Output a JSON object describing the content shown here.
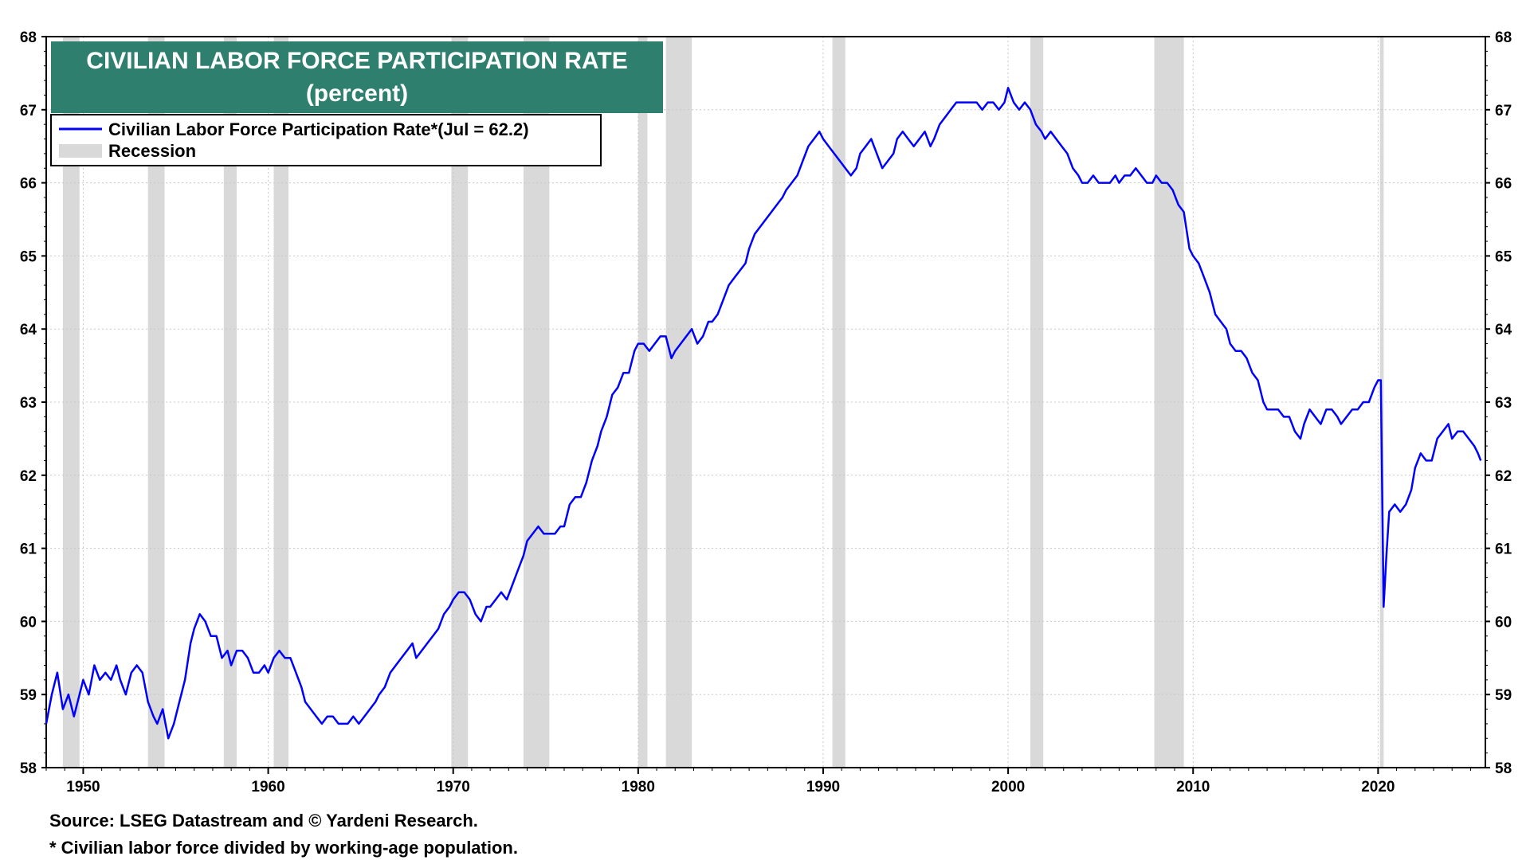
{
  "chart_data": {
    "type": "line",
    "title": "CIVILIAN LABOR FORCE PARTICIPATION RATE",
    "subtitle": "(percent)",
    "ylim": [
      58,
      68
    ],
    "xlim": [
      1948.0,
      2025.8
    ],
    "y_ticks": [
      58,
      59,
      60,
      61,
      62,
      63,
      64,
      65,
      66,
      67,
      68
    ],
    "x_ticks": [
      1950,
      1960,
      1970,
      1980,
      1990,
      2000,
      2010,
      2020
    ],
    "grid": true,
    "legend_position": "top-left",
    "series": [
      {
        "name": "Civilian Labor Force Participation Rate*(Jul = 62.2)",
        "color": "#0000ff",
        "points": [
          [
            1948.0,
            58.6
          ],
          [
            1948.3,
            59.0
          ],
          [
            1948.6,
            59.3
          ],
          [
            1948.9,
            58.8
          ],
          [
            1949.2,
            59.0
          ],
          [
            1949.5,
            58.7
          ],
          [
            1949.8,
            59.0
          ],
          [
            1950.0,
            59.2
          ],
          [
            1950.3,
            59.0
          ],
          [
            1950.6,
            59.4
          ],
          [
            1950.9,
            59.2
          ],
          [
            1951.2,
            59.3
          ],
          [
            1951.5,
            59.2
          ],
          [
            1951.8,
            59.4
          ],
          [
            1952.0,
            59.2
          ],
          [
            1952.3,
            59.0
          ],
          [
            1952.6,
            59.3
          ],
          [
            1952.9,
            59.4
          ],
          [
            1953.2,
            59.3
          ],
          [
            1953.5,
            58.9
          ],
          [
            1953.8,
            58.7
          ],
          [
            1954.0,
            58.6
          ],
          [
            1954.3,
            58.8
          ],
          [
            1954.6,
            58.4
          ],
          [
            1954.9,
            58.6
          ],
          [
            1955.2,
            58.9
          ],
          [
            1955.5,
            59.2
          ],
          [
            1955.8,
            59.7
          ],
          [
            1956.0,
            59.9
          ],
          [
            1956.3,
            60.1
          ],
          [
            1956.6,
            60.0
          ],
          [
            1956.9,
            59.8
          ],
          [
            1957.2,
            59.8
          ],
          [
            1957.5,
            59.5
          ],
          [
            1957.8,
            59.6
          ],
          [
            1958.0,
            59.4
          ],
          [
            1958.3,
            59.6
          ],
          [
            1958.6,
            59.6
          ],
          [
            1958.9,
            59.5
          ],
          [
            1959.2,
            59.3
          ],
          [
            1959.5,
            59.3
          ],
          [
            1959.8,
            59.4
          ],
          [
            1960.0,
            59.3
          ],
          [
            1960.3,
            59.5
          ],
          [
            1960.6,
            59.6
          ],
          [
            1960.9,
            59.5
          ],
          [
            1961.2,
            59.5
          ],
          [
            1961.5,
            59.3
          ],
          [
            1961.8,
            59.1
          ],
          [
            1962.0,
            58.9
          ],
          [
            1962.3,
            58.8
          ],
          [
            1962.6,
            58.7
          ],
          [
            1962.9,
            58.6
          ],
          [
            1963.2,
            58.7
          ],
          [
            1963.5,
            58.7
          ],
          [
            1963.8,
            58.6
          ],
          [
            1964.0,
            58.6
          ],
          [
            1964.3,
            58.6
          ],
          [
            1964.6,
            58.7
          ],
          [
            1964.9,
            58.6
          ],
          [
            1965.2,
            58.7
          ],
          [
            1965.5,
            58.8
          ],
          [
            1965.8,
            58.9
          ],
          [
            1966.0,
            59.0
          ],
          [
            1966.3,
            59.1
          ],
          [
            1966.6,
            59.3
          ],
          [
            1966.9,
            59.4
          ],
          [
            1967.2,
            59.5
          ],
          [
            1967.5,
            59.6
          ],
          [
            1967.8,
            59.7
          ],
          [
            1968.0,
            59.5
          ],
          [
            1968.3,
            59.6
          ],
          [
            1968.6,
            59.7
          ],
          [
            1968.9,
            59.8
          ],
          [
            1969.2,
            59.9
          ],
          [
            1969.5,
            60.1
          ],
          [
            1969.8,
            60.2
          ],
          [
            1970.0,
            60.3
          ],
          [
            1970.3,
            60.4
          ],
          [
            1970.6,
            60.4
          ],
          [
            1970.9,
            60.3
          ],
          [
            1971.2,
            60.1
          ],
          [
            1971.5,
            60.0
          ],
          [
            1971.8,
            60.2
          ],
          [
            1972.0,
            60.2
          ],
          [
            1972.3,
            60.3
          ],
          [
            1972.6,
            60.4
          ],
          [
            1972.9,
            60.3
          ],
          [
            1973.2,
            60.5
          ],
          [
            1973.5,
            60.7
          ],
          [
            1973.8,
            60.9
          ],
          [
            1974.0,
            61.1
          ],
          [
            1974.3,
            61.2
          ],
          [
            1974.6,
            61.3
          ],
          [
            1974.9,
            61.2
          ],
          [
            1975.2,
            61.2
          ],
          [
            1975.5,
            61.2
          ],
          [
            1975.8,
            61.3
          ],
          [
            1976.0,
            61.3
          ],
          [
            1976.3,
            61.6
          ],
          [
            1976.6,
            61.7
          ],
          [
            1976.9,
            61.7
          ],
          [
            1977.2,
            61.9
          ],
          [
            1977.5,
            62.2
          ],
          [
            1977.8,
            62.4
          ],
          [
            1978.0,
            62.6
          ],
          [
            1978.3,
            62.8
          ],
          [
            1978.6,
            63.1
          ],
          [
            1978.9,
            63.2
          ],
          [
            1979.2,
            63.4
          ],
          [
            1979.5,
            63.4
          ],
          [
            1979.8,
            63.7
          ],
          [
            1980.0,
            63.8
          ],
          [
            1980.3,
            63.8
          ],
          [
            1980.6,
            63.7
          ],
          [
            1980.9,
            63.8
          ],
          [
            1981.2,
            63.9
          ],
          [
            1981.5,
            63.9
          ],
          [
            1981.8,
            63.6
          ],
          [
            1982.0,
            63.7
          ],
          [
            1982.3,
            63.8
          ],
          [
            1982.6,
            63.9
          ],
          [
            1982.9,
            64.0
          ],
          [
            1983.2,
            63.8
          ],
          [
            1983.5,
            63.9
          ],
          [
            1983.8,
            64.1
          ],
          [
            1984.0,
            64.1
          ],
          [
            1984.3,
            64.2
          ],
          [
            1984.6,
            64.4
          ],
          [
            1984.9,
            64.6
          ],
          [
            1985.2,
            64.7
          ],
          [
            1985.5,
            64.8
          ],
          [
            1985.8,
            64.9
          ],
          [
            1986.0,
            65.1
          ],
          [
            1986.3,
            65.3
          ],
          [
            1986.6,
            65.4
          ],
          [
            1986.9,
            65.5
          ],
          [
            1987.2,
            65.6
          ],
          [
            1987.5,
            65.7
          ],
          [
            1987.8,
            65.8
          ],
          [
            1988.0,
            65.9
          ],
          [
            1988.3,
            66.0
          ],
          [
            1988.6,
            66.1
          ],
          [
            1988.9,
            66.3
          ],
          [
            1989.2,
            66.5
          ],
          [
            1989.5,
            66.6
          ],
          [
            1989.8,
            66.7
          ],
          [
            1990.0,
            66.6
          ],
          [
            1990.3,
            66.5
          ],
          [
            1990.6,
            66.4
          ],
          [
            1990.9,
            66.3
          ],
          [
            1991.2,
            66.2
          ],
          [
            1991.5,
            66.1
          ],
          [
            1991.8,
            66.2
          ],
          [
            1992.0,
            66.4
          ],
          [
            1992.3,
            66.5
          ],
          [
            1992.6,
            66.6
          ],
          [
            1992.9,
            66.4
          ],
          [
            1993.2,
            66.2
          ],
          [
            1993.5,
            66.3
          ],
          [
            1993.8,
            66.4
          ],
          [
            1994.0,
            66.6
          ],
          [
            1994.3,
            66.7
          ],
          [
            1994.6,
            66.6
          ],
          [
            1994.9,
            66.5
          ],
          [
            1995.2,
            66.6
          ],
          [
            1995.5,
            66.7
          ],
          [
            1995.8,
            66.5
          ],
          [
            1996.0,
            66.6
          ],
          [
            1996.3,
            66.8
          ],
          [
            1996.6,
            66.9
          ],
          [
            1996.9,
            67.0
          ],
          [
            1997.2,
            67.1
          ],
          [
            1997.5,
            67.1
          ],
          [
            1997.8,
            67.1
          ],
          [
            1998.0,
            67.1
          ],
          [
            1998.3,
            67.1
          ],
          [
            1998.6,
            67.0
          ],
          [
            1998.9,
            67.1
          ],
          [
            1999.2,
            67.1
          ],
          [
            1999.5,
            67.0
          ],
          [
            1999.8,
            67.1
          ],
          [
            2000.0,
            67.3
          ],
          [
            2000.3,
            67.1
          ],
          [
            2000.6,
            67.0
          ],
          [
            2000.9,
            67.1
          ],
          [
            2001.2,
            67.0
          ],
          [
            2001.5,
            66.8
          ],
          [
            2001.8,
            66.7
          ],
          [
            2002.0,
            66.6
          ],
          [
            2002.3,
            66.7
          ],
          [
            2002.6,
            66.6
          ],
          [
            2002.9,
            66.5
          ],
          [
            2003.2,
            66.4
          ],
          [
            2003.5,
            66.2
          ],
          [
            2003.8,
            66.1
          ],
          [
            2004.0,
            66.0
          ],
          [
            2004.3,
            66.0
          ],
          [
            2004.6,
            66.1
          ],
          [
            2004.9,
            66.0
          ],
          [
            2005.2,
            66.0
          ],
          [
            2005.5,
            66.0
          ],
          [
            2005.8,
            66.1
          ],
          [
            2006.0,
            66.0
          ],
          [
            2006.3,
            66.1
          ],
          [
            2006.6,
            66.1
          ],
          [
            2006.9,
            66.2
          ],
          [
            2007.2,
            66.1
          ],
          [
            2007.5,
            66.0
          ],
          [
            2007.8,
            66.0
          ],
          [
            2008.0,
            66.1
          ],
          [
            2008.3,
            66.0
          ],
          [
            2008.6,
            66.0
          ],
          [
            2008.9,
            65.9
          ],
          [
            2009.2,
            65.7
          ],
          [
            2009.5,
            65.6
          ],
          [
            2009.8,
            65.1
          ],
          [
            2010.0,
            65.0
          ],
          [
            2010.3,
            64.9
          ],
          [
            2010.6,
            64.7
          ],
          [
            2010.9,
            64.5
          ],
          [
            2011.2,
            64.2
          ],
          [
            2011.5,
            64.1
          ],
          [
            2011.8,
            64.0
          ],
          [
            2012.0,
            63.8
          ],
          [
            2012.3,
            63.7
          ],
          [
            2012.6,
            63.7
          ],
          [
            2012.9,
            63.6
          ],
          [
            2013.2,
            63.4
          ],
          [
            2013.5,
            63.3
          ],
          [
            2013.8,
            63.0
          ],
          [
            2014.0,
            62.9
          ],
          [
            2014.3,
            62.9
          ],
          [
            2014.6,
            62.9
          ],
          [
            2014.9,
            62.8
          ],
          [
            2015.2,
            62.8
          ],
          [
            2015.5,
            62.6
          ],
          [
            2015.8,
            62.5
          ],
          [
            2016.0,
            62.7
          ],
          [
            2016.3,
            62.9
          ],
          [
            2016.6,
            62.8
          ],
          [
            2016.9,
            62.7
          ],
          [
            2017.2,
            62.9
          ],
          [
            2017.5,
            62.9
          ],
          [
            2017.8,
            62.8
          ],
          [
            2018.0,
            62.7
          ],
          [
            2018.3,
            62.8
          ],
          [
            2018.6,
            62.9
          ],
          [
            2018.9,
            62.9
          ],
          [
            2019.2,
            63.0
          ],
          [
            2019.5,
            63.0
          ],
          [
            2019.8,
            63.2
          ],
          [
            2020.0,
            63.3
          ],
          [
            2020.15,
            63.3
          ],
          [
            2020.3,
            60.2
          ],
          [
            2020.45,
            60.9
          ],
          [
            2020.6,
            61.5
          ],
          [
            2020.9,
            61.6
          ],
          [
            2021.2,
            61.5
          ],
          [
            2021.5,
            61.6
          ],
          [
            2021.8,
            61.8
          ],
          [
            2022.0,
            62.1
          ],
          [
            2022.3,
            62.3
          ],
          [
            2022.6,
            62.2
          ],
          [
            2022.9,
            62.2
          ],
          [
            2023.2,
            62.5
          ],
          [
            2023.5,
            62.6
          ],
          [
            2023.8,
            62.7
          ],
          [
            2024.0,
            62.5
          ],
          [
            2024.3,
            62.6
          ],
          [
            2024.6,
            62.6
          ],
          [
            2024.9,
            62.5
          ],
          [
            2025.2,
            62.4
          ],
          [
            2025.4,
            62.3
          ],
          [
            2025.55,
            62.2
          ]
        ]
      }
    ],
    "recession_label": "Recession",
    "recessions": [
      [
        1948.9,
        1949.8
      ],
      [
        1953.5,
        1954.4
      ],
      [
        1957.6,
        1958.3
      ],
      [
        1960.3,
        1961.1
      ],
      [
        1969.9,
        1970.8
      ],
      [
        1973.8,
        1975.2
      ],
      [
        1980.0,
        1980.5
      ],
      [
        1981.5,
        1982.9
      ],
      [
        1990.5,
        1991.2
      ],
      [
        2001.2,
        2001.9
      ],
      [
        2007.9,
        2009.5
      ],
      [
        2020.1,
        2020.3
      ]
    ],
    "recession_color": "#d9d9d9",
    "title_box_color": "#2e7f6e",
    "line_color": "#0000ff"
  },
  "footnotes": {
    "source": "Source: LSEG Datastream and © Yardeni Research.",
    "note": "* Civilian labor force divided by working-age population."
  }
}
